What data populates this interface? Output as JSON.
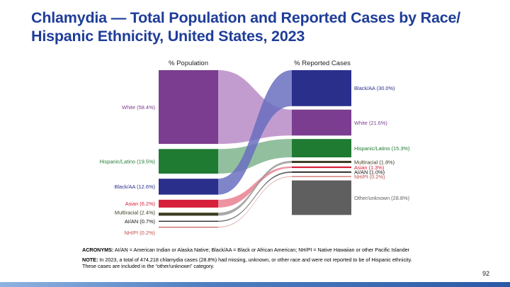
{
  "title_line1": "Chlamydia — Total Population and Reported Cases by Race/",
  "title_line2": "Hispanic Ethnicity, United States, 2023",
  "chart_data": {
    "type": "sankey",
    "left_header": "% Population",
    "right_header": "% Reported Cases",
    "population": [
      {
        "key": "white",
        "label": "White (58.4%)",
        "value": 58.4,
        "color": "#7b3d8f"
      },
      {
        "key": "hispanic",
        "label": "Hispanic/Latino (19.5%)",
        "value": 19.5,
        "color": "#1f7a32"
      },
      {
        "key": "black",
        "label": "Black/AA (12.6%)",
        "value": 12.6,
        "color": "#2b2f8c"
      },
      {
        "key": "asian",
        "label": "Asian (6.2%)",
        "value": 6.2,
        "color": "#d61f3a"
      },
      {
        "key": "multiracial",
        "label": "Multiracial (2.4%)",
        "value": 2.4,
        "color": "#3d3d22"
      },
      {
        "key": "aian",
        "label": "AI/AN (0.7%)",
        "value": 0.7,
        "color": "#111111"
      },
      {
        "key": "nhpi",
        "label": "NH/PI (0.2%)",
        "value": 0.2,
        "color": "#c0504d"
      }
    ],
    "cases": [
      {
        "key": "black",
        "label": "Black/AA (30.0%)",
        "value": 30.0,
        "color": "#2b2f8c"
      },
      {
        "key": "white",
        "label": "White (21.6%)",
        "value": 21.6,
        "color": "#7b3d8f"
      },
      {
        "key": "hispanic",
        "label": "Hispanic/Latino (15.3%)",
        "value": 15.3,
        "color": "#1f7a32"
      },
      {
        "key": "multiracial",
        "label": "Multiracial (1.8%)",
        "value": 1.8,
        "color": "#3d3d22"
      },
      {
        "key": "asian",
        "label": "Asian (1.3%)",
        "value": 1.3,
        "color": "#d61f3a"
      },
      {
        "key": "aian",
        "label": "AI/AN (1.0%)",
        "value": 1.0,
        "color": "#111111"
      },
      {
        "key": "nhpi",
        "label": "NH/PI (0.2%)",
        "value": 0.2,
        "color": "#c0504d"
      },
      {
        "key": "other",
        "label": "Other/unknown (28.8%)",
        "value": 28.8,
        "color": "#5f5f5f"
      }
    ],
    "flow_colors": {
      "white": "#b98bc7",
      "hispanic": "#7fb58d",
      "black": "#6a6fc0",
      "asian": "#ea7f90",
      "multiracial": "#999999",
      "aian": "#444444",
      "nhpi": "#d9a3a1"
    }
  },
  "notes": {
    "acronyms_label": "ACRONYMS:",
    "acronyms_text": " AI/AN = American Indian or Alaska Native; Black/AA = Black or African American; NH/PI = Native Hawaiian or other Pacific Islander",
    "note_label": "NOTE:",
    "note_text": " In 2023, a total of 474,218 chlamydia cases (28.8%) had missing, unknown, or other race and were not reported to be of Hispanic ethnicity. These cases are included in the “other/unknown” category."
  },
  "page_number": "92"
}
